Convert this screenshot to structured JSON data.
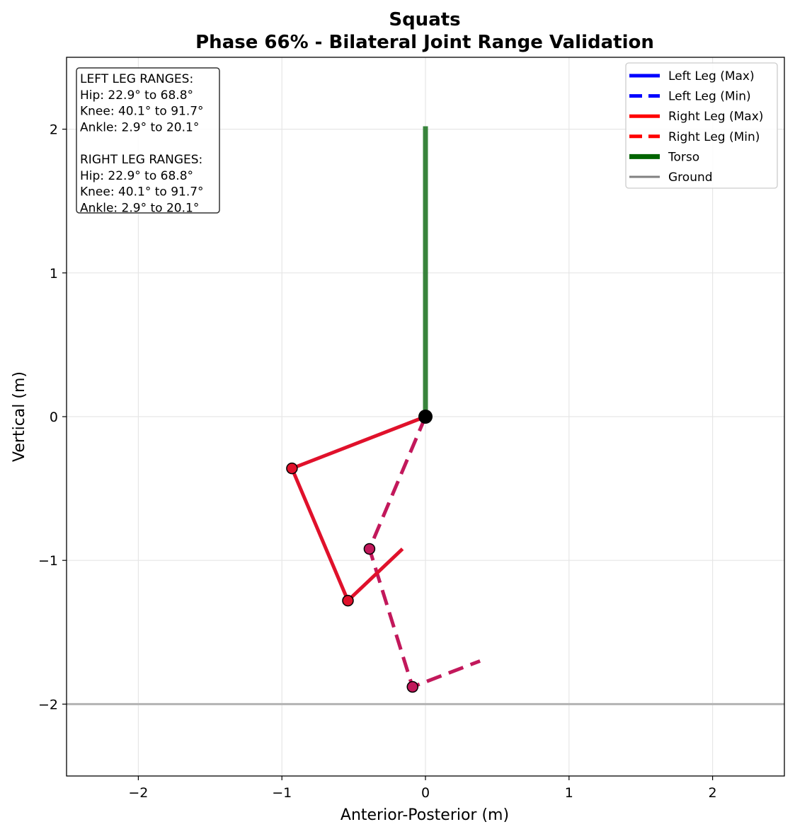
{
  "chart_data": {
    "type": "line",
    "title": "Squats",
    "subtitle": "Phase 66% - Bilateral Joint Range Validation",
    "xlabel": "Anterior-Posterior (m)",
    "ylabel": "Vertical (m)",
    "xlim": [
      -2.5,
      2.5
    ],
    "ylim": [
      -2.5,
      2.5
    ],
    "x_ticks": [
      -2,
      -1,
      0,
      1,
      2
    ],
    "y_ticks": [
      -2,
      -1,
      0,
      1,
      2
    ],
    "x_tick_labels": [
      "−2",
      "−1",
      "0",
      "1",
      "2"
    ],
    "y_tick_labels": [
      "−2",
      "−1",
      "0",
      "1",
      "2"
    ],
    "grid": true,
    "legend_position": "top-right",
    "ranges_box": {
      "lines": [
        "LEFT LEG RANGES:",
        "Hip: 22.9° to 68.8°",
        "Knee: 40.1° to 91.7°",
        "Ankle: 2.9° to 20.1°",
        "",
        "RIGHT LEG RANGES:",
        "Hip: 22.9° to 68.8°",
        "Knee: 40.1° to 91.7°",
        "Ankle: 2.9° to 20.1°"
      ]
    },
    "legend": [
      {
        "label": "Left Leg (Max)",
        "color": "#0000ff",
        "style": "solid"
      },
      {
        "label": "Left Leg (Min)",
        "color": "#0000ff",
        "style": "dashed"
      },
      {
        "label": "Right Leg (Max)",
        "color": "#ff0000",
        "style": "solid"
      },
      {
        "label": "Right Leg (Min)",
        "color": "#ff0000",
        "style": "dashed"
      },
      {
        "label": "Torso",
        "color": "#006400",
        "style": "solid"
      },
      {
        "label": "Ground",
        "color": "#808080",
        "style": "solid"
      }
    ],
    "series": [
      {
        "name": "Torso",
        "color": "#2e7d32",
        "style": "solid",
        "points": [
          [
            0,
            0
          ],
          [
            0,
            2.02
          ]
        ]
      },
      {
        "name": "Ground",
        "color": "#b3b3b3",
        "style": "solid",
        "points": [
          [
            -2.5,
            -2.0
          ],
          [
            2.5,
            -2.0
          ]
        ]
      },
      {
        "name": "Right Leg (Min)",
        "color": "#c2185b",
        "style": "dashed",
        "points": [
          [
            0,
            0
          ],
          [
            -0.39,
            -0.92
          ],
          [
            -0.09,
            -1.88
          ],
          [
            0.38,
            -1.7
          ]
        ],
        "joints": [
          [
            -0.39,
            -0.92
          ],
          [
            -0.09,
            -1.88
          ]
        ]
      },
      {
        "name": "Right Leg (Max)",
        "color": "#e0112b",
        "style": "solid",
        "points": [
          [
            0,
            0
          ],
          [
            -0.93,
            -0.36
          ],
          [
            -0.54,
            -1.28
          ],
          [
            -0.16,
            -0.92
          ]
        ],
        "joints": [
          [
            -0.93,
            -0.36
          ],
          [
            -0.54,
            -1.28
          ]
        ]
      }
    ],
    "hip_point": [
      0,
      0
    ]
  }
}
